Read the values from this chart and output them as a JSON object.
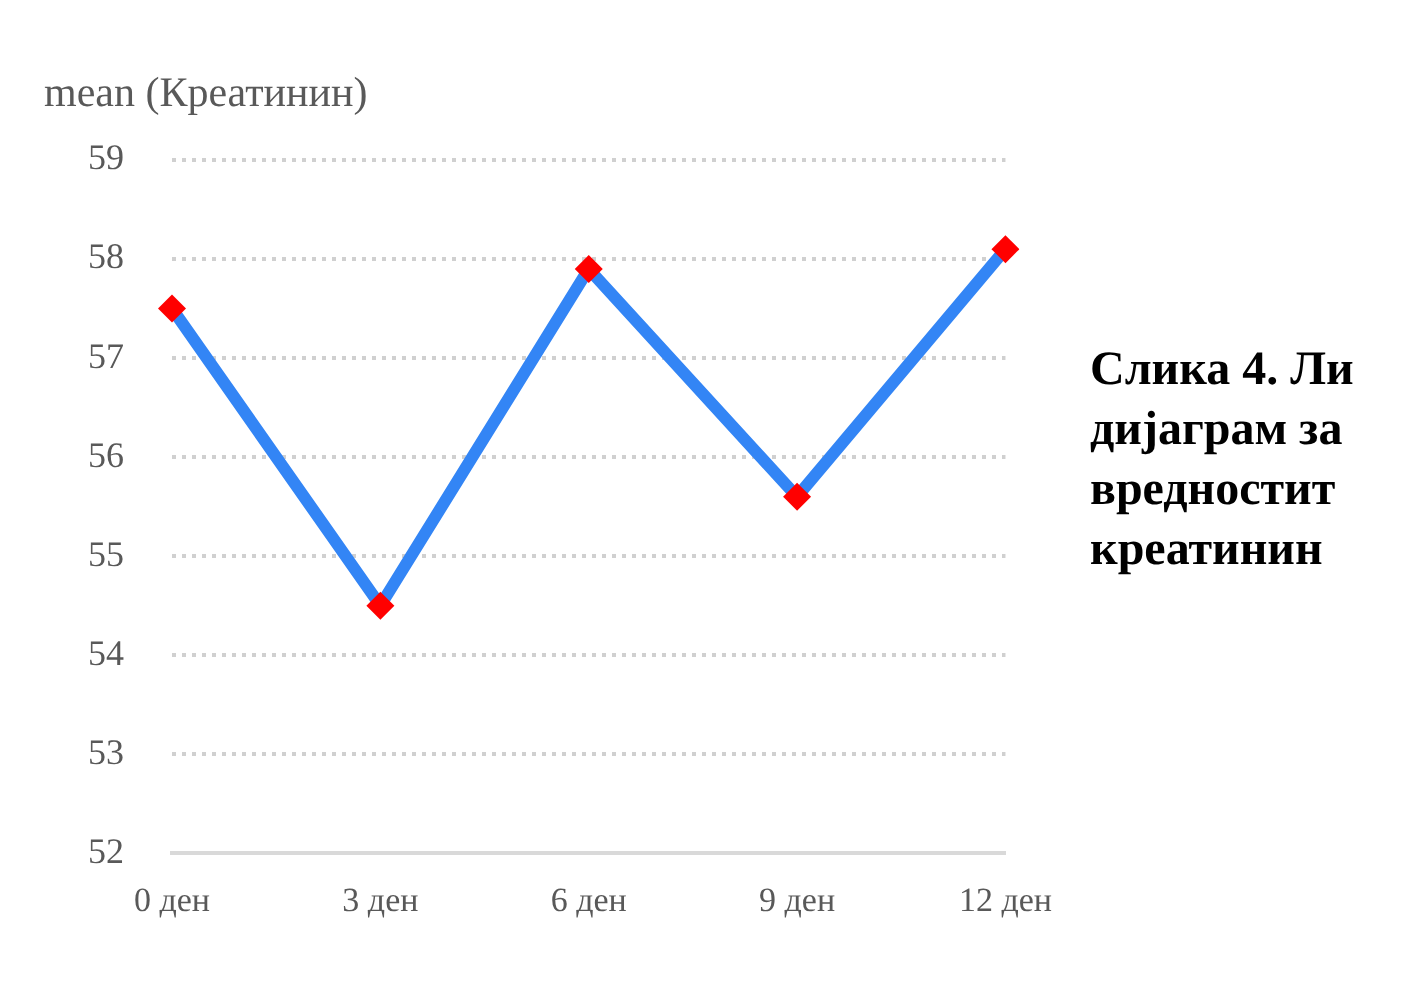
{
  "chart_data": {
    "type": "line",
    "ylabel": "mean (Креатинин)",
    "categories": [
      "0 ден",
      "3 ден",
      "6 ден",
      "9 ден",
      "12 ден"
    ],
    "series": [
      {
        "color": "#3385f5",
        "values": [
          57.5,
          54.5,
          57.9,
          55.6,
          58.1
        ]
      }
    ],
    "ylim": [
      52,
      59
    ],
    "yticks": [
      52,
      53,
      54,
      55,
      56,
      57,
      58,
      59
    ],
    "grid": "y",
    "marker": "diamond",
    "line_style": "solid",
    "legend": false,
    "annotations": [
      "Слика 4. Ли\nдијаграм за\nвредностит\nкреатинин"
    ]
  }
}
